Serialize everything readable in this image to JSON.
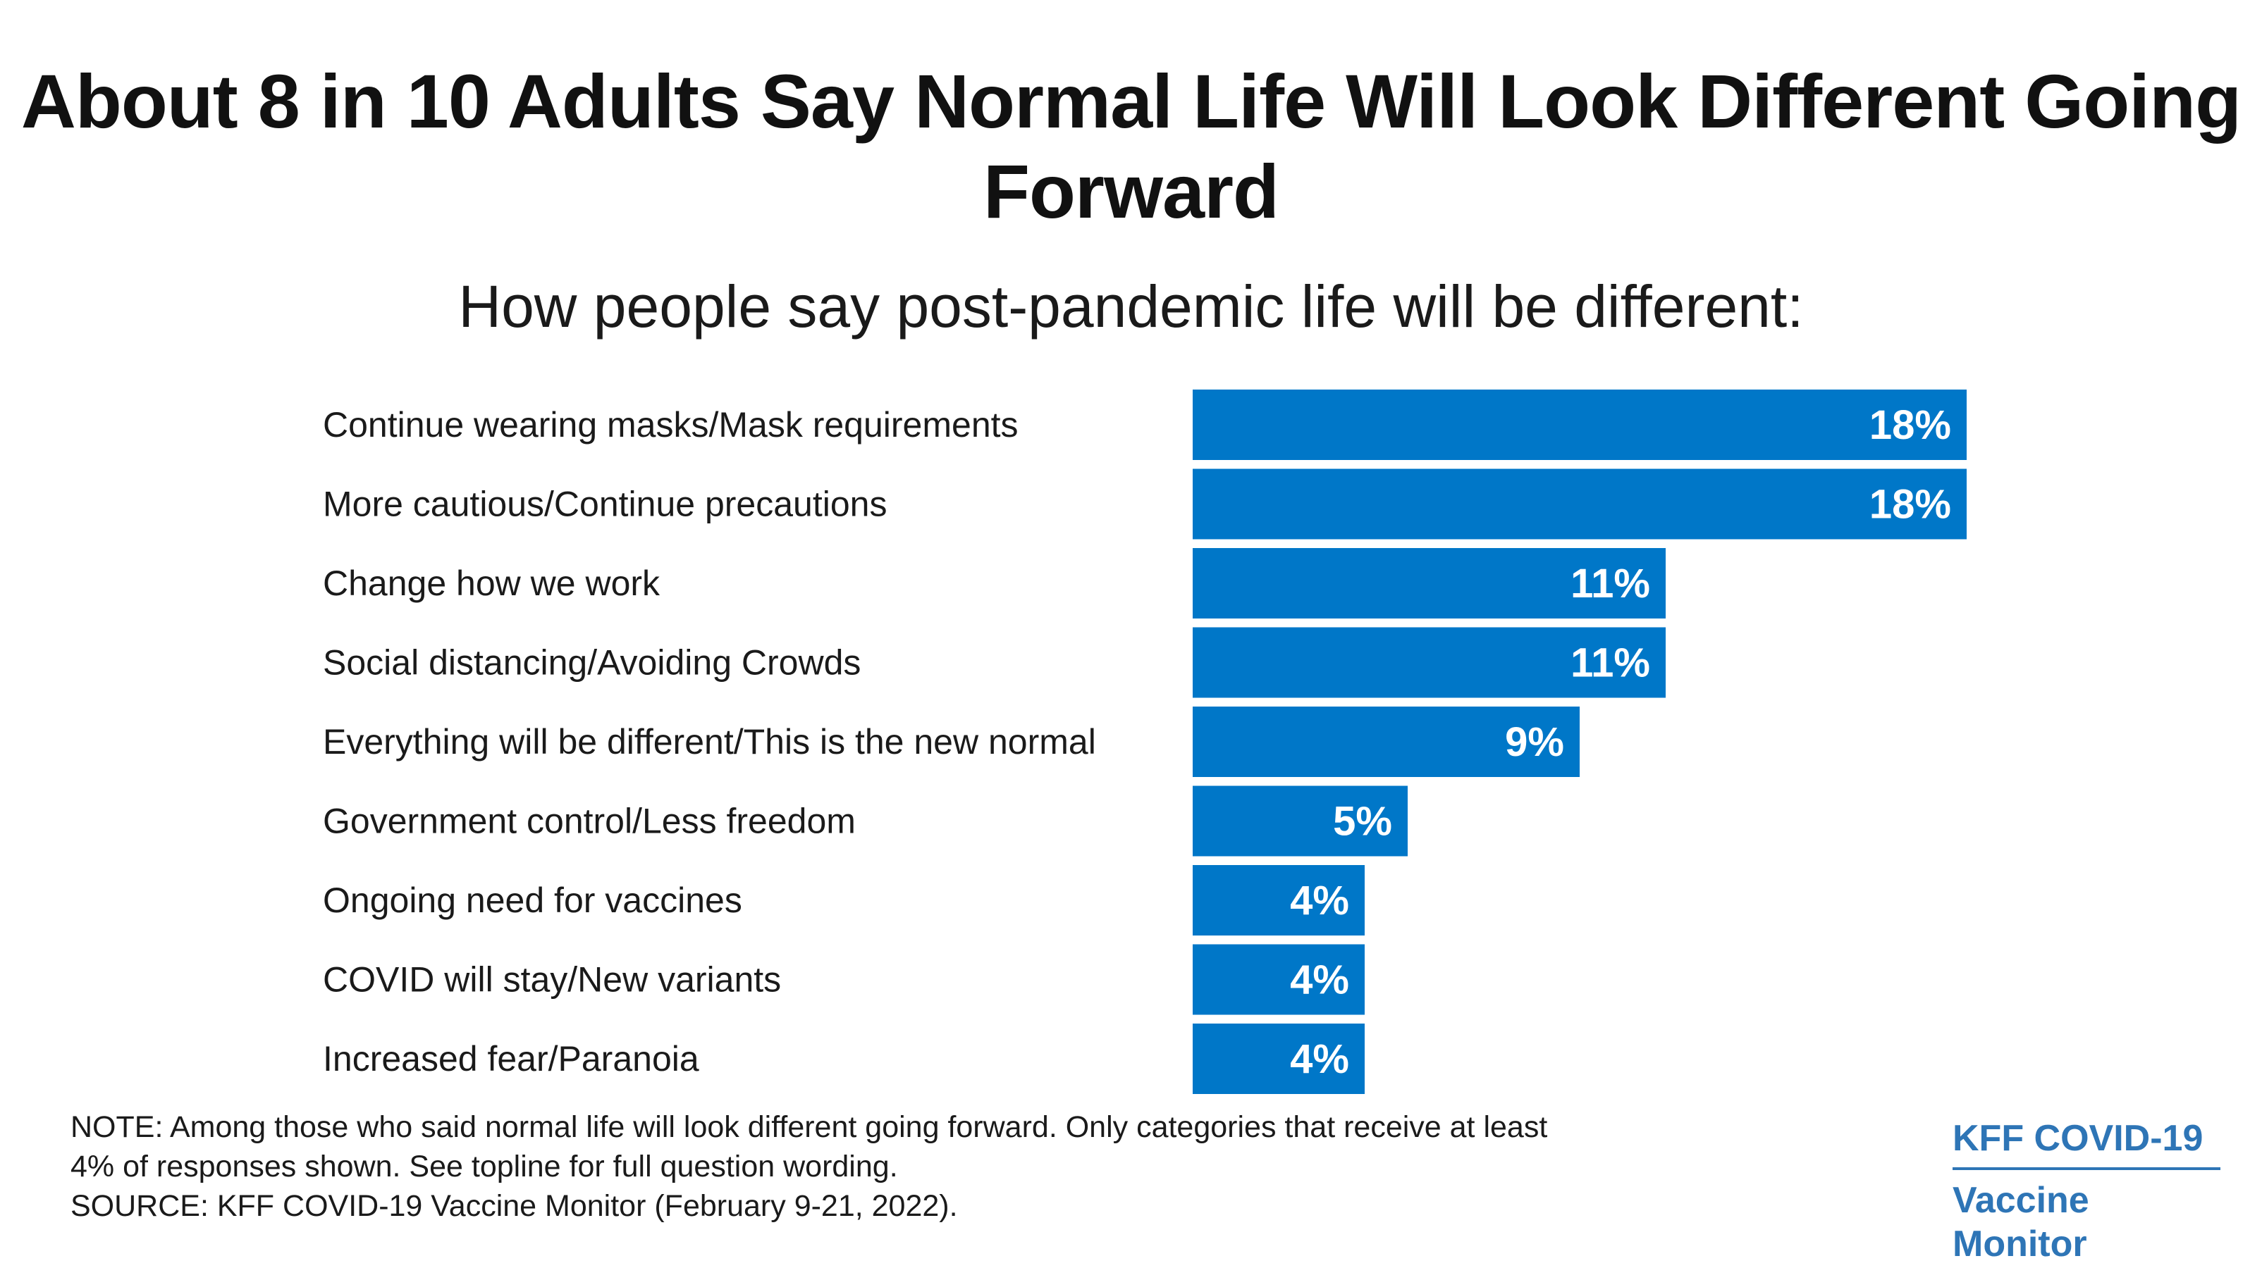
{
  "title": "About 8 in 10 Adults Say Normal Life Will Look Different Going Forward",
  "subtitle": "How people say post-pandemic life will be different:",
  "colors": {
    "bar": "#0077C8",
    "value_text": "#FFFFFF",
    "brand": "#2E75B6"
  },
  "chart_data": {
    "type": "bar",
    "orientation": "horizontal",
    "categories": [
      "Continue wearing masks/Mask requirements",
      "More cautious/Continue precautions",
      "Change how we work",
      "Social distancing/Avoiding Crowds",
      "Everything will be different/This is the new normal",
      "Government control/Less freedom",
      "Ongoing need for vaccines",
      "COVID will stay/New variants",
      "Increased fear/Paranoia"
    ],
    "values": [
      18,
      18,
      11,
      11,
      9,
      5,
      4,
      4,
      4
    ],
    "value_labels": [
      "18%",
      "18%",
      "11%",
      "11%",
      "9%",
      "5%",
      "4%",
      "4%",
      "4%"
    ],
    "unit": "%",
    "xlim": [
      0,
      18
    ],
    "grid": false,
    "legend": "none"
  },
  "footer": {
    "note_lines": [
      "NOTE: Among those who said normal life will look different going forward. Only categories that receive at least",
      "4% of responses shown. See topline for full question wording.",
      "SOURCE: KFF COVID-19 Vaccine Monitor (February 9-21, 2022)."
    ]
  },
  "brand": {
    "line1": "KFF COVID-19",
    "line2": "Vaccine Monitor"
  }
}
